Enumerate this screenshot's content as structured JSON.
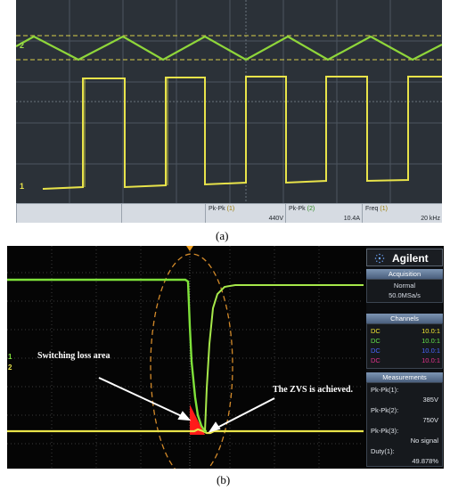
{
  "panel_a": {
    "caption": "(a)",
    "channel_markers": [
      "2",
      "1"
    ],
    "measurements": [
      {
        "label": "Pk-Pk",
        "channel": "(1)",
        "value": "440V"
      },
      {
        "label": "Pk-Pk",
        "channel": "(2)",
        "value": "10.4A"
      },
      {
        "label": "Freq",
        "channel": "(1)",
        "value": "20 kHz"
      }
    ]
  },
  "panel_b": {
    "caption": "(b)",
    "annotations": {
      "switching_loss": "Switching loss area",
      "zvs": "The ZVS is achieved."
    },
    "channel_markers": [
      "1",
      "2"
    ],
    "sidebar": {
      "brand": "Agilent",
      "acquisition": {
        "title": "Acquisition",
        "mode": "Normal",
        "rate": "50.0MSa/s"
      },
      "channels_title": "Channels",
      "channels": [
        {
          "coupling": "DC",
          "probe": "10.0:1",
          "color": "#f2e632"
        },
        {
          "coupling": "DC",
          "probe": "10.0:1",
          "color": "#62e24a"
        },
        {
          "coupling": "DC",
          "probe": "10.0:1",
          "color": "#4a66ff"
        },
        {
          "coupling": "DC",
          "probe": "10.0:1",
          "color": "#e0318a"
        }
      ],
      "measurements_title": "Measurements",
      "measurements": [
        {
          "label": "Pk-Pk(1):",
          "value": "385V"
        },
        {
          "label": "Pk-Pk(2):",
          "value": "750V"
        },
        {
          "label": "Pk-Pk(3):",
          "value": "No signal"
        },
        {
          "label": "Duty(1):",
          "value": "49.878%"
        }
      ]
    }
  },
  "colors": {
    "trace_yellow": "#e8e34a",
    "trace_green": "#7fe23a",
    "loss_area": "#ff1a1a",
    "ellipse": "#d38a2a"
  }
}
